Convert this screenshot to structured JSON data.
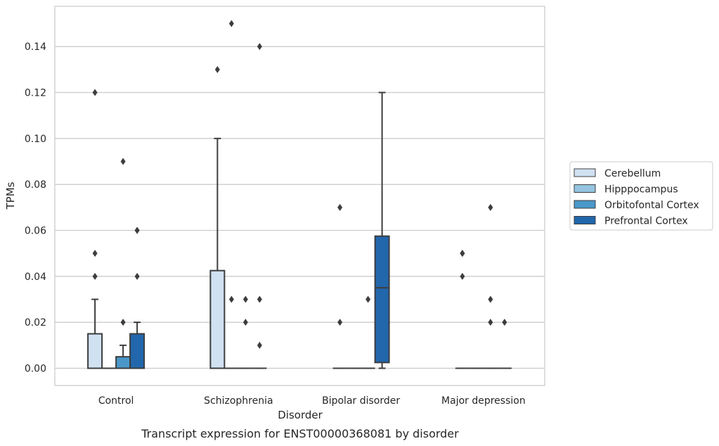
{
  "caption": "Transcript expression for ENST00000368081 by disorder",
  "chart_data": {
    "type": "box",
    "xlabel": "Disorder",
    "ylabel": "TPMs",
    "ylim": [
      -0.0075,
      0.1575
    ],
    "yticks": [
      "0.00",
      "0.02",
      "0.04",
      "0.06",
      "0.08",
      "0.10",
      "0.12",
      "0.14"
    ],
    "grid": "horizontal",
    "legend_position": "right",
    "categories": [
      "Control",
      "Schizophrenia",
      "Bipolar disorder",
      "Major depression"
    ],
    "series": [
      {
        "name": "Cerebellum",
        "color": "#d0e1f2",
        "boxes": [
          {
            "q1": 0.0,
            "median": 0.0,
            "q3": 0.015,
            "whislo": 0.0,
            "whishi": 0.03,
            "fliers": [
              0.04,
              0.05,
              0.12
            ]
          },
          {
            "q1": 0.0,
            "median": 0.0,
            "q3": 0.0425,
            "whislo": 0.0,
            "whishi": 0.1,
            "fliers": [
              0.13
            ]
          },
          {
            "q1": 0.0,
            "median": 0.0,
            "q3": 0.0,
            "whislo": 0.0,
            "whishi": 0.0,
            "fliers": [
              0.02,
              0.07
            ]
          },
          {
            "q1": 0.0,
            "median": 0.0,
            "q3": 0.0,
            "whislo": 0.0,
            "whishi": 0.0,
            "fliers": [
              0.04,
              0.05,
              0.05
            ]
          }
        ]
      },
      {
        "name": "Hipppocampus",
        "color": "#94c4df",
        "boxes": [
          {
            "q1": 0.0,
            "median": 0.0,
            "q3": 0.0,
            "whislo": 0.0,
            "whishi": 0.0,
            "fliers": []
          },
          {
            "q1": 0.0,
            "median": 0.0,
            "q3": 0.0,
            "whislo": 0.0,
            "whishi": 0.0,
            "fliers": [
              0.03,
              0.15
            ]
          },
          {
            "q1": 0.0,
            "median": 0.0,
            "q3": 0.0,
            "whislo": 0.0,
            "whishi": 0.0,
            "fliers": []
          },
          {
            "q1": 0.0,
            "median": 0.0,
            "q3": 0.0,
            "whislo": 0.0,
            "whishi": 0.0,
            "fliers": []
          }
        ]
      },
      {
        "name": "Orbitofontal Cortex",
        "color": "#4a98c9",
        "boxes": [
          {
            "q1": 0.0,
            "median": 0.0,
            "q3": 0.005,
            "whislo": 0.0,
            "whishi": 0.01,
            "fliers": [
              0.02,
              0.09
            ]
          },
          {
            "q1": 0.0,
            "median": 0.0,
            "q3": 0.0,
            "whislo": 0.0,
            "whishi": 0.0,
            "fliers": [
              0.02,
              0.03
            ]
          },
          {
            "q1": 0.0,
            "median": 0.0,
            "q3": 0.0,
            "whislo": 0.0,
            "whishi": 0.0,
            "fliers": [
              0.03
            ]
          },
          {
            "q1": 0.0,
            "median": 0.0,
            "q3": 0.0,
            "whislo": 0.0,
            "whishi": 0.0,
            "fliers": [
              0.02,
              0.03,
              0.07
            ]
          }
        ]
      },
      {
        "name": "Prefrontal Cortex",
        "color": "#2266ac",
        "boxes": [
          {
            "q1": 0.0,
            "median": 0.0,
            "q3": 0.015,
            "whislo": 0.0,
            "whishi": 0.02,
            "fliers": [
              0.04,
              0.06,
              0.06
            ]
          },
          {
            "q1": 0.0,
            "median": 0.0,
            "q3": 0.0,
            "whislo": 0.0,
            "whishi": 0.0,
            "fliers": [
              0.01,
              0.03,
              0.14
            ]
          },
          {
            "q1": 0.0025,
            "median": 0.035,
            "q3": 0.0575,
            "whislo": 0.0,
            "whishi": 0.12,
            "fliers": []
          },
          {
            "q1": 0.0,
            "median": 0.0,
            "q3": 0.0,
            "whislo": 0.0,
            "whishi": 0.0,
            "fliers": [
              0.02
            ]
          }
        ]
      }
    ]
  }
}
